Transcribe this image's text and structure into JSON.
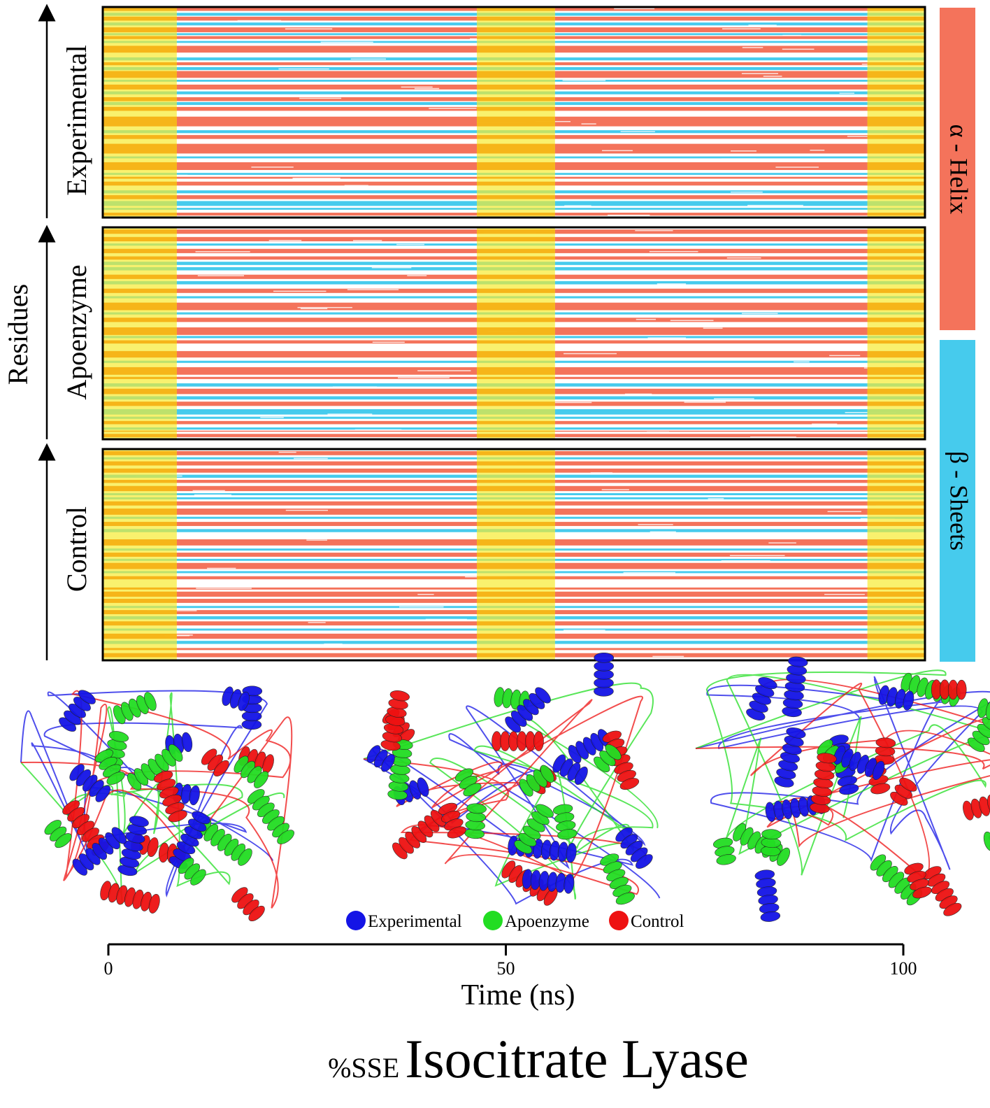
{
  "chart_data": {
    "type": "heatmap",
    "title_prefix": "%SSE",
    "title_main": "Isocitrate Lyase",
    "y_common_label": "Residues",
    "x_axis": {
      "label": "Time (ns)",
      "range": [
        0,
        100
      ],
      "ticks": [
        0,
        50,
        100
      ],
      "tick_labels": [
        "0",
        "50",
        "100"
      ]
    },
    "panels": [
      {
        "name": "Experimental",
        "rows": "HHHH..BBB.HHHH..BBB..HHHHH.BB.HHH..BB...HHHHHHH.....BBB..HHH..BBB.HHHHHHH..BB...HHHHH..BBB...HHHH.BBB..HHHH......HHHHHHHHHH....BBB..HHHH.....HHHHHHHHHH...BB....HHHHHHHH...BB..HH...HHHH.....BBB..HHHH..BBBBB..BB...HHH.."
      },
      {
        "name": "Apoenzyme",
        "rows": "..HHHH...HHHH..BB...HHHH...HHH..BBB..BBB....HHHH..BBB....HHHH...BB....HHHHHHH..BB...HHHH.....HHHHHHH.BB..HHH.......HHHHHH...BB....HHHHHHH..HH....BBB..HHHHH..BBB..HHHH...BBBBB..BB..HHH...BB.H..HHH.."
      },
      {
        "name": "Control",
        "rows": "..HHHH..BB..HHHH...HHHH..BBB..HHH...HHHHH..BB..BB..HHHH...HHHHHH..BB...HHHH...BBB.......HHHHHH...BB..HHHH..BB..HHHHHH..BB...HHH........HH..HHHHH..HHHH...BB..HHHH..BBB..HHHH...BB...HHHHH..BBB....HH...HHHH..."
      }
    ],
    "highlight_bands_ns": [
      [
        0,
        9
      ],
      [
        45.5,
        55
      ],
      [
        93,
        100
      ]
    ],
    "sse_legend": [
      {
        "label": "α - Helix",
        "color": "#f4735b"
      },
      {
        "label": "β - Sheets",
        "color": "#46cbed"
      }
    ],
    "structure_snapshots": [
      {
        "name": "snapshot-start"
      },
      {
        "name": "snapshot-middle"
      },
      {
        "name": "snapshot-end"
      }
    ],
    "structure_legend": [
      {
        "label": "Experimental",
        "color": "#1414e6"
      },
      {
        "label": "Apoenzyme",
        "color": "#22dd22"
      },
      {
        "label": "Control",
        "color": "#ee1111"
      }
    ]
  },
  "colors": {
    "helix": "#f4735b",
    "sheet": "#46cbed",
    "band_yellow": "#f8ee55",
    "band_orange": "#f5b013",
    "band_green": "#b9e06d",
    "frame": "#000000"
  }
}
